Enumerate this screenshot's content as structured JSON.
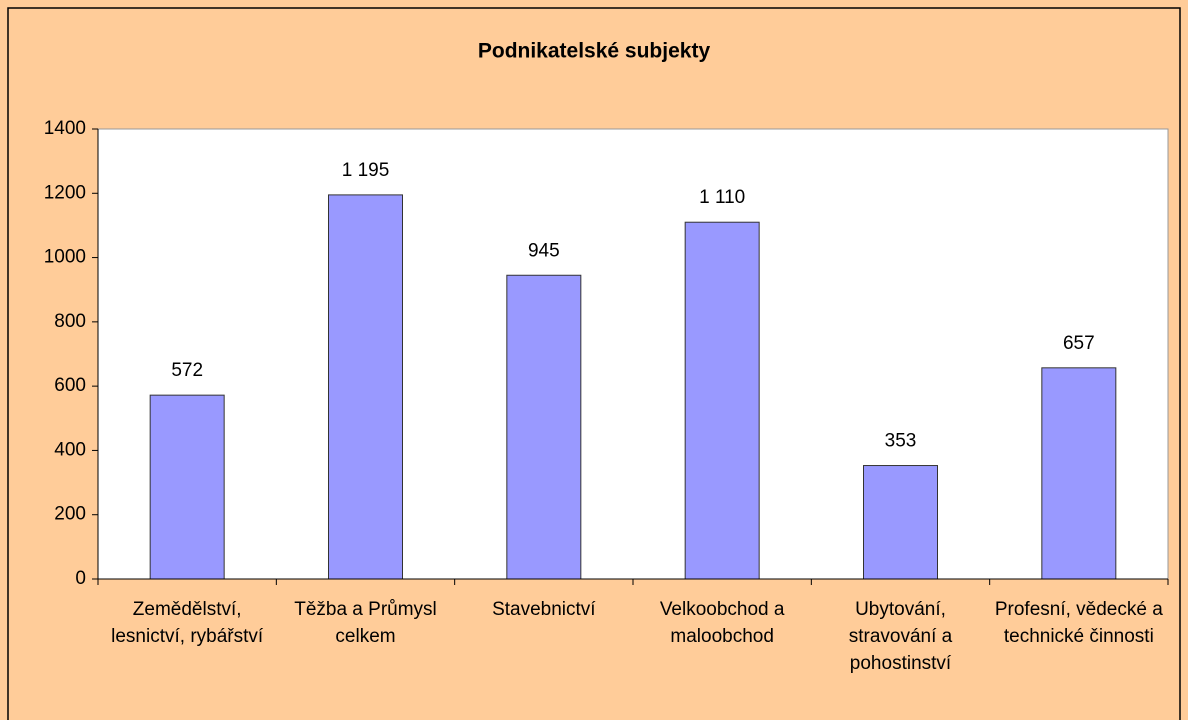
{
  "chart_data": {
    "type": "bar",
    "title": "Podnikatelské subjekty",
    "categories": [
      "Zemědělství, lesnictví, rybářství",
      "Těžba a Průmysl celkem",
      "Stavebnictví",
      "Velkoobchod a maloobchod",
      "Ubytování, stravování a pohostinství",
      "Profesní, vědecké a technické činnosti"
    ],
    "values": [
      572,
      1195,
      945,
      1110,
      353,
      657
    ],
    "value_labels": [
      "572",
      "1 195",
      "945",
      "1 110",
      "353",
      "657"
    ],
    "color": "#9999ff",
    "ylim": [
      0,
      1400
    ],
    "yticks": [
      0,
      200,
      400,
      600,
      800,
      1000,
      1200,
      1400
    ]
  }
}
